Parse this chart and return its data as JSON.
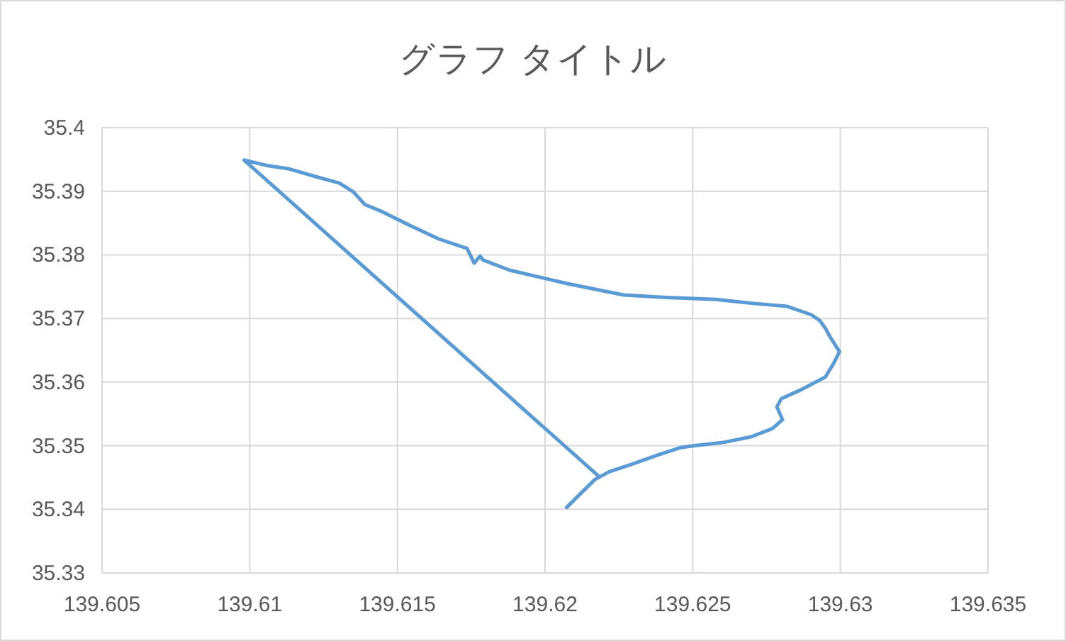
{
  "chart_data": {
    "type": "line",
    "title": "グラフ タイトル",
    "series": [
      {
        "color": "#5b9bd5",
        "x": [
          139.62073,
          139.62121,
          139.62169,
          139.62217,
          139.62289,
          139.62386,
          139.62458,
          139.62506,
          139.62602,
          139.62698,
          139.6277,
          139.62804,
          139.62785,
          139.628,
          139.62867,
          139.62949,
          139.62978,
          139.62997,
          139.62964,
          139.6295,
          139.6293,
          139.62901,
          139.6282,
          139.62698,
          139.62578,
          139.6241,
          139.62266,
          139.62073,
          139.6188,
          139.6179,
          139.6178,
          139.6176,
          139.61736,
          139.6164,
          139.61544,
          139.61448,
          139.6139,
          139.61351,
          139.61303,
          139.61231,
          139.61135,
          139.61063,
          139.60981,
          139.62179
        ],
        "values": [
          35.3403,
          35.3425,
          35.3447,
          35.3459,
          35.347,
          35.3486,
          35.3497,
          35.35,
          35.3505,
          35.3514,
          35.3527,
          35.3541,
          35.3561,
          35.3574,
          35.3588,
          35.3608,
          35.363,
          35.3648,
          35.3672,
          35.3684,
          35.3697,
          35.3706,
          35.3719,
          35.3724,
          35.373,
          35.3733,
          35.3737,
          35.3755,
          35.3776,
          35.3792,
          35.3798,
          35.3787,
          35.381,
          35.3825,
          35.3846,
          35.3868,
          35.3879,
          35.3899,
          35.3913,
          35.3922,
          35.3935,
          35.394,
          35.3949,
          35.3453
        ]
      }
    ],
    "xlim": [
      139.605,
      139.635
    ],
    "xticks": [
      139.605,
      139.61,
      139.615,
      139.62,
      139.625,
      139.63,
      139.635
    ],
    "ylim": [
      35.33,
      35.4
    ],
    "yticks": [
      35.33,
      35.34,
      35.35,
      35.36,
      35.37,
      35.38,
      35.39,
      35.4
    ],
    "grid": true,
    "marker": "none",
    "line_style": "solid"
  }
}
